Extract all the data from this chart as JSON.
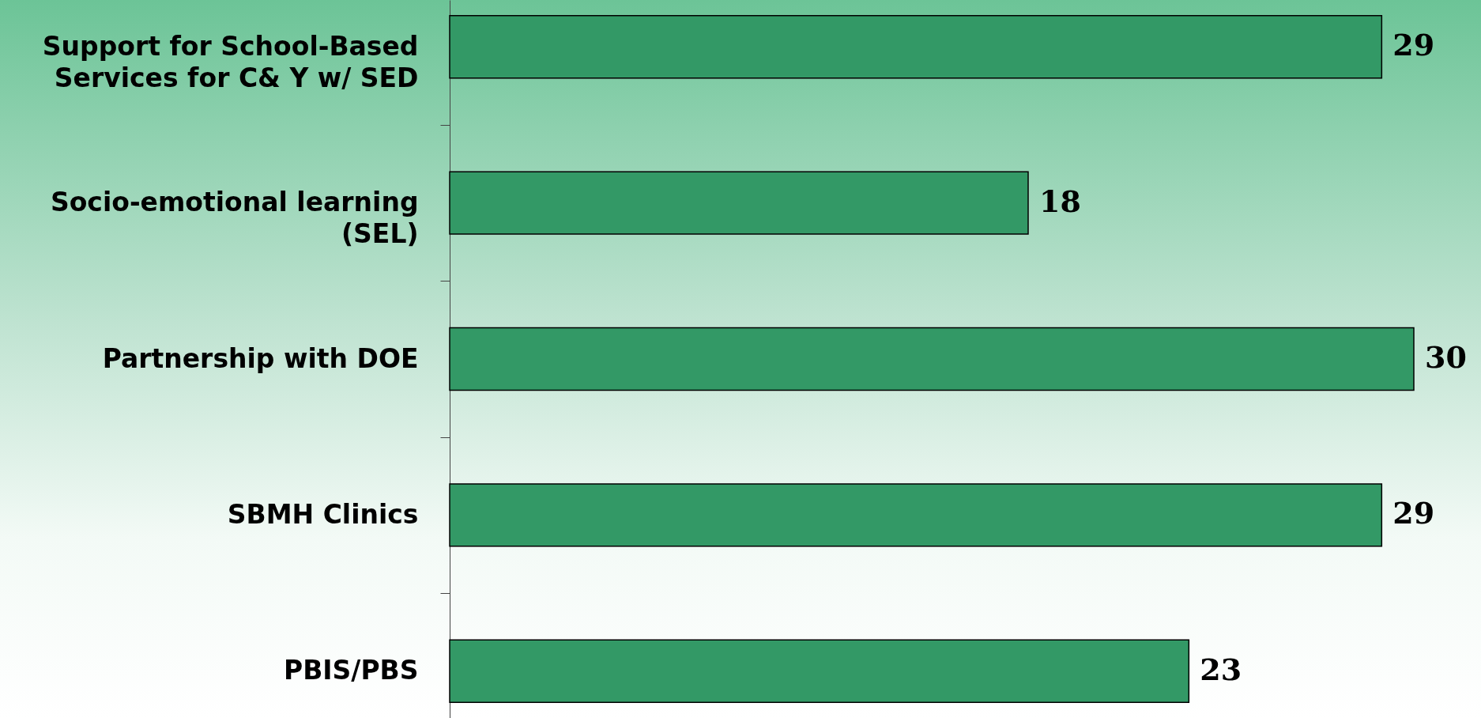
{
  "chart_data": {
    "type": "bar",
    "orientation": "horizontal",
    "categories": [
      "Support for School-Based Services for C& Y w/ SED",
      "Socio-emotional learning (SEL)",
      "Partnership with DOE",
      "SBMH Clinics",
      "PBIS/PBS"
    ],
    "values": [
      29,
      18,
      30,
      29,
      23
    ],
    "color": "#339966",
    "data_labels": true
  }
}
